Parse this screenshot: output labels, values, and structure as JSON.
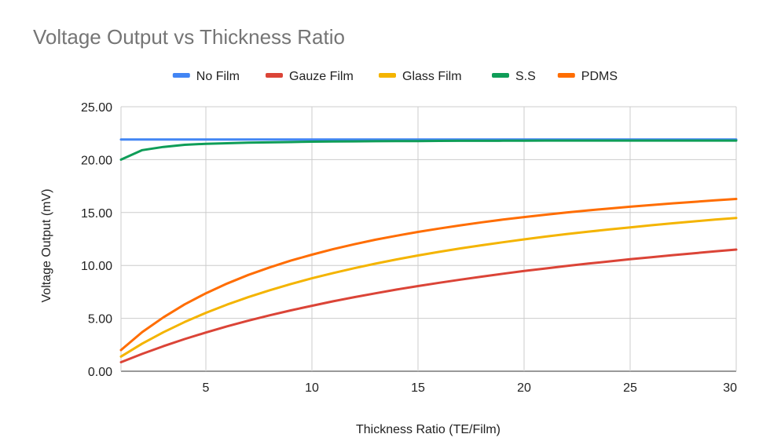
{
  "chart_data": {
    "type": "line",
    "title": "Voltage Output vs Thickness Ratio",
    "xlabel": "Thickness Ratio (TE/Film)",
    "ylabel": "Voltage Output (mV)",
    "xlim": [
      1,
      30
    ],
    "ylim": [
      0,
      25
    ],
    "x_ticks": [
      5,
      10,
      15,
      20,
      25,
      30
    ],
    "y_ticks": [
      "0.00",
      "5.00",
      "10.00",
      "15.00",
      "20.00",
      "25.00"
    ],
    "grid": true,
    "legend_position": "top",
    "x": [
      1,
      2,
      3,
      4,
      5,
      6,
      7,
      8,
      9,
      10,
      11,
      12,
      13,
      14,
      15,
      16,
      17,
      18,
      19,
      20,
      21,
      22,
      23,
      24,
      25,
      26,
      27,
      28,
      29,
      30
    ],
    "series": [
      {
        "name": "No Film",
        "color": "#4285f4",
        "values": [
          21.9,
          21.9,
          21.9,
          21.9,
          21.9,
          21.9,
          21.9,
          21.9,
          21.9,
          21.9,
          21.9,
          21.9,
          21.9,
          21.9,
          21.9,
          21.9,
          21.9,
          21.9,
          21.9,
          21.9,
          21.9,
          21.9,
          21.9,
          21.9,
          21.9,
          21.9,
          21.9,
          21.9,
          21.9,
          21.9
        ]
      },
      {
        "name": "Gauze Film",
        "color": "#db4437",
        "values": [
          0.85,
          1.64,
          2.37,
          3.04,
          3.66,
          4.24,
          4.78,
          5.28,
          5.75,
          6.19,
          6.61,
          7.0,
          7.37,
          7.72,
          8.05,
          8.36,
          8.66,
          8.94,
          9.21,
          9.47,
          9.71,
          9.95,
          10.17,
          10.38,
          10.59,
          10.78,
          10.97,
          11.15,
          11.33,
          11.5
        ]
      },
      {
        "name": "Glass Film",
        "color": "#f4b400",
        "values": [
          1.39,
          2.61,
          3.69,
          4.65,
          5.52,
          6.3,
          7.0,
          7.65,
          8.24,
          8.78,
          9.28,
          9.74,
          10.17,
          10.57,
          10.94,
          11.28,
          11.61,
          11.91,
          12.19,
          12.46,
          12.72,
          12.96,
          13.18,
          13.4,
          13.6,
          13.8,
          13.98,
          14.16,
          14.33,
          14.49
        ]
      },
      {
        "name": "S.S",
        "color": "#0f9d58",
        "values": [
          20.0,
          20.9,
          21.2,
          21.4,
          21.5,
          21.55,
          21.6,
          21.63,
          21.66,
          21.7,
          21.72,
          21.73,
          21.74,
          21.75,
          21.76,
          21.77,
          21.78,
          21.78,
          21.79,
          21.79,
          21.8,
          21.8,
          21.8,
          21.8,
          21.8,
          21.8,
          21.8,
          21.8,
          21.8,
          21.8
        ]
      },
      {
        "name": "PDMS",
        "color": "#ff6d01",
        "values": [
          2.0,
          3.7,
          5.1,
          6.32,
          7.37,
          8.29,
          9.1,
          9.81,
          10.45,
          11.02,
          11.54,
          12.0,
          12.43,
          12.81,
          13.17,
          13.49,
          13.79,
          14.07,
          14.33,
          14.57,
          14.79,
          15.0,
          15.2,
          15.38,
          15.55,
          15.71,
          15.87,
          16.01,
          16.15,
          16.28
        ]
      }
    ]
  }
}
